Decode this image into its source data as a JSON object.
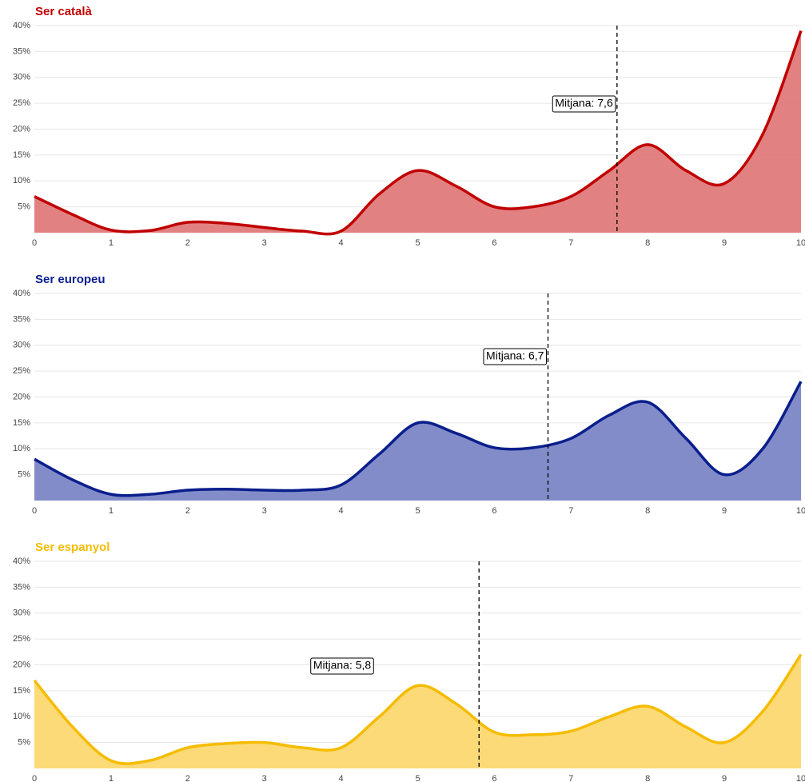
{
  "chart_data": [
    {
      "type": "area",
      "title": "Ser català",
      "color": "#c00000",
      "fill": "#e07a7a",
      "x": [
        0,
        0.5,
        1,
        1.5,
        2,
        2.5,
        3,
        3.5,
        4,
        4.5,
        5,
        5.5,
        6,
        6.5,
        7,
        7.5,
        8,
        8.5,
        9,
        9.5,
        10
      ],
      "values": [
        7,
        3.5,
        0.5,
        0.4,
        2,
        1.8,
        1,
        0.3,
        0.3,
        7.5,
        12,
        9,
        5,
        5,
        7,
        12,
        17,
        12,
        9.5,
        19,
        39
      ],
      "mean": 7.6,
      "mean_label": "Mitjana: 7,6",
      "xlim": [
        0,
        10
      ],
      "ylim": [
        0,
        40
      ],
      "grid": true,
      "xticks": [
        0,
        1,
        2,
        3,
        4,
        5,
        6,
        7,
        8,
        9,
        10
      ],
      "yticks": [
        {
          "value": 5,
          "label": "5%"
        },
        {
          "value": 10,
          "label": "10%"
        },
        {
          "value": 15,
          "label": "15%"
        },
        {
          "value": 20,
          "label": "20%"
        },
        {
          "value": 25,
          "label": "25%"
        },
        {
          "value": 30,
          "label": "30%"
        },
        {
          "value": 35,
          "label": "35%"
        },
        {
          "value": 40,
          "label": "40%"
        }
      ]
    },
    {
      "type": "area",
      "title": "Ser europeu",
      "color": "#0a1e8c",
      "fill": "#7b86c6",
      "x": [
        0,
        0.5,
        1,
        1.5,
        2,
        2.5,
        3,
        3.5,
        4,
        4.5,
        5,
        5.5,
        6,
        6.5,
        7,
        7.5,
        8,
        8.5,
        9,
        9.5,
        10
      ],
      "values": [
        8,
        4,
        1.2,
        1.2,
        2,
        2.2,
        2,
        2,
        3,
        9,
        15,
        13,
        10.2,
        10.2,
        12,
        16.5,
        19,
        12,
        5,
        10,
        23
      ],
      "mean": 6.7,
      "mean_label": "Mitjana: 6,7",
      "xlim": [
        0,
        10
      ],
      "ylim": [
        0,
        40
      ],
      "grid": true,
      "xticks": [
        0,
        1,
        2,
        3,
        4,
        5,
        6,
        7,
        8,
        9,
        10
      ],
      "yticks": [
        {
          "value": 5,
          "label": "5%"
        },
        {
          "value": 10,
          "label": "10%"
        },
        {
          "value": 15,
          "label": "15%"
        },
        {
          "value": 20,
          "label": "20%"
        },
        {
          "value": 25,
          "label": "25%"
        },
        {
          "value": 30,
          "label": "30%"
        },
        {
          "value": 35,
          "label": "35%"
        },
        {
          "value": 40,
          "label": "40%"
        }
      ]
    },
    {
      "type": "area",
      "title": "Ser espanyol",
      "color": "#f5bc00",
      "fill": "#fcd870",
      "x": [
        0,
        0.5,
        1,
        1.5,
        2,
        2.5,
        3,
        3.5,
        4,
        4.5,
        5,
        5.5,
        6,
        6.5,
        7,
        7.5,
        8,
        8.5,
        9,
        9.5,
        10
      ],
      "values": [
        17,
        8,
        1.5,
        1.5,
        4,
        4.8,
        5,
        4,
        4,
        10,
        16,
        12.5,
        7,
        6.5,
        7.2,
        10,
        12,
        8,
        5,
        11,
        22
      ],
      "mean": 5.8,
      "mean_label": "Mitjana: 5,8",
      "xlim": [
        0,
        10
      ],
      "ylim": [
        0,
        40
      ],
      "grid": true,
      "xticks": [
        0,
        1,
        2,
        3,
        4,
        5,
        6,
        7,
        8,
        9,
        10
      ],
      "yticks": [
        {
          "value": 5,
          "label": "5%"
        },
        {
          "value": 10,
          "label": "10%"
        },
        {
          "value": 15,
          "label": "15%"
        },
        {
          "value": 20,
          "label": "20%"
        },
        {
          "value": 25,
          "label": "25%"
        },
        {
          "value": 30,
          "label": "30%"
        },
        {
          "value": 35,
          "label": "35%"
        },
        {
          "value": 40,
          "label": "40%"
        }
      ]
    }
  ]
}
